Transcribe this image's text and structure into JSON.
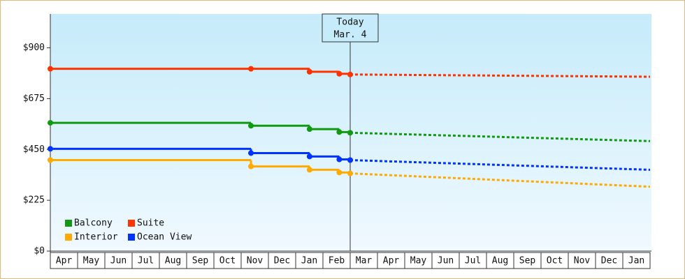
{
  "chart_data": {
    "type": "step-line",
    "categories": [
      "Apr",
      "May",
      "Jun",
      "Jul",
      "Aug",
      "Sep",
      "Oct",
      "Nov",
      "Dec",
      "Jan",
      "Feb",
      "Mar",
      "Apr",
      "May",
      "Jun",
      "Jul",
      "Aug",
      "Sep",
      "Oct",
      "Nov",
      "Dec",
      "Jan"
    ],
    "xlim": [
      0,
      22
    ],
    "ylim": [
      0,
      1050
    ],
    "yticks": [
      {
        "value": 0,
        "label": "$0"
      },
      {
        "value": 225,
        "label": "$225"
      },
      {
        "value": 450,
        "label": "$450"
      },
      {
        "value": 675,
        "label": "$675"
      },
      {
        "value": 900,
        "label": "$900"
      }
    ],
    "today": {
      "x": 11,
      "label": "Today",
      "date": "Mar. 4"
    },
    "series": [
      {
        "name": "Balcony",
        "color": "#119911",
        "x": [
          0,
          7.36,
          9.51,
          10.6,
          11
        ],
        "values": [
          568,
          555,
          540,
          527,
          524
        ],
        "projected_x": [
          11,
          22
        ],
        "projected_values": [
          524,
          487
        ]
      },
      {
        "name": "Suite",
        "color": "#ff3300",
        "x": [
          0,
          7.36,
          9.51,
          10.6,
          11
        ],
        "values": [
          807,
          807,
          794,
          785,
          782
        ],
        "projected_x": [
          11,
          22
        ],
        "projected_values": [
          782,
          772
        ]
      },
      {
        "name": "Interior",
        "color": "#ffaa00",
        "x": [
          0,
          7.36,
          9.51,
          10.6,
          11
        ],
        "values": [
          403,
          375,
          360,
          348,
          344
        ],
        "projected_x": [
          11,
          22
        ],
        "projected_values": [
          344,
          285
        ]
      },
      {
        "name": "Ocean View",
        "color": "#0033ff",
        "x": [
          0,
          7.36,
          9.51,
          10.6,
          11
        ],
        "values": [
          453,
          434,
          419,
          406,
          403
        ],
        "projected_x": [
          11,
          22
        ],
        "projected_values": [
          403,
          360
        ]
      }
    ]
  }
}
